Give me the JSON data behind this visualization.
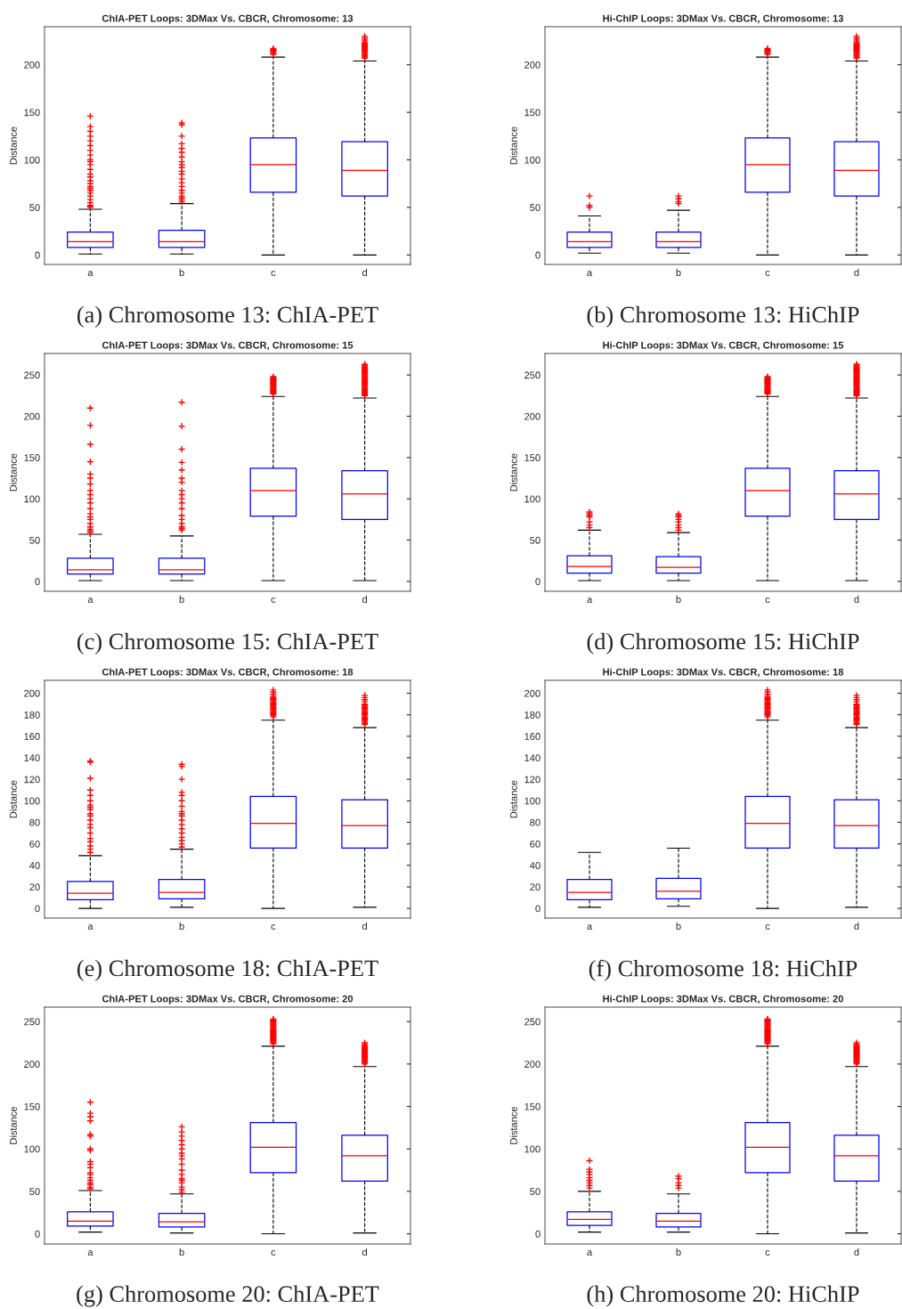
{
  "chart_data": [
    {
      "type": "box",
      "title": "ChIA-PET Loops: 3DMax Vs. CBCR, Chromosome: 13",
      "ylabel": "Distance",
      "categories": [
        "a",
        "b",
        "c",
        "d"
      ],
      "ylim": [
        -10,
        240
      ],
      "yticks": [
        0,
        50,
        100,
        150,
        200
      ],
      "marker": "cross",
      "annotations": [
        "(a) Chromosome 13: ChIA-PET"
      ],
      "series": [
        {
          "color": "#0000ff",
          "boxes": [
            {
              "low": 1,
              "q1": 8,
              "median": 14,
              "q3": 24,
              "high": 48,
              "outliers": [
                50,
                51,
                52,
                55,
                58,
                62,
                65,
                68,
                70,
                72,
                75,
                78,
                82,
                85,
                90,
                95,
                98,
                100,
                105,
                110,
                115,
                120,
                125,
                130,
                135,
                146
              ]
            },
            {
              "low": 1,
              "q1": 8,
              "median": 14,
              "q3": 26,
              "high": 54,
              "outliers": [
                56,
                58,
                60,
                62,
                65,
                68,
                72,
                76,
                80,
                85,
                88,
                92,
                95,
                98,
                103,
                108,
                112,
                117,
                125,
                137,
                139
              ]
            },
            {
              "low": 0,
              "q1": 66,
              "median": 95,
              "q3": 123,
              "high": 208,
              "outliers": [
                211,
                212,
                213,
                214,
                215,
                216,
                217
              ]
            },
            {
              "low": 0,
              "q1": 62,
              "median": 89,
              "q3": 119,
              "high": 204,
              "outliers": [
                207,
                208,
                209,
                210,
                211,
                212,
                213,
                214,
                215,
                216,
                217,
                218,
                219,
                220,
                221,
                222,
                223,
                224,
                226,
                228,
                230
              ]
            }
          ]
        }
      ]
    },
    {
      "type": "box",
      "title": "Hi-ChIP Loops: 3DMax Vs. CBCR, Chromosome: 13",
      "ylabel": "Distance",
      "categories": [
        "a",
        "b",
        "c",
        "d"
      ],
      "ylim": [
        -10,
        240
      ],
      "yticks": [
        0,
        50,
        100,
        150,
        200
      ],
      "marker": "cross",
      "annotations": [
        "(b) Chromosome 13: HiChIP"
      ],
      "series": [
        {
          "color": "#0000ff",
          "boxes": [
            {
              "low": 2,
              "q1": 8,
              "median": 14,
              "q3": 24,
              "high": 41,
              "outliers": [
                50,
                52,
                62
              ]
            },
            {
              "low": 2,
              "q1": 8,
              "median": 14,
              "q3": 24,
              "high": 47,
              "outliers": [
                54,
                56,
                59,
                62
              ]
            },
            {
              "low": 0,
              "q1": 66,
              "median": 95,
              "q3": 123,
              "high": 208,
              "outliers": [
                211,
                212,
                213,
                214,
                215,
                216,
                217
              ]
            },
            {
              "low": 0,
              "q1": 62,
              "median": 89,
              "q3": 119,
              "high": 204,
              "outliers": [
                207,
                208,
                209,
                210,
                211,
                212,
                213,
                214,
                215,
                216,
                217,
                218,
                219,
                220,
                221,
                222,
                223,
                224,
                226,
                228,
                230
              ]
            }
          ]
        }
      ]
    },
    {
      "type": "box",
      "title": "ChIA-PET Loops: 3DMax Vs. CBCR, Chromosome: 15",
      "ylabel": "Distance",
      "categories": [
        "a",
        "b",
        "c",
        "d"
      ],
      "ylim": [
        -12,
        276
      ],
      "yticks": [
        0,
        50,
        100,
        150,
        200,
        250
      ],
      "marker": "cross",
      "annotations": [
        "(c) Chromosome 15: ChIA-PET"
      ],
      "series": [
        {
          "color": "#0000ff",
          "boxes": [
            {
              "low": 1,
              "q1": 9,
              "median": 14,
              "q3": 28,
              "high": 57,
              "outliers": [
                59,
                61,
                63,
                66,
                70,
                75,
                78,
                82,
                88,
                95,
                100,
                105,
                110,
                118,
                125,
                130,
                145,
                166,
                189,
                210
              ]
            },
            {
              "low": 1,
              "q1": 9,
              "median": 14,
              "q3": 28,
              "high": 55,
              "outliers": [
                62,
                64,
                66,
                70,
                75,
                80,
                88,
                95,
                100,
                105,
                110,
                120,
                125,
                135,
                144,
                160,
                188,
                217
              ]
            },
            {
              "low": 1,
              "q1": 79,
              "median": 110,
              "q3": 137,
              "high": 224,
              "outliers": [
                227,
                228,
                229,
                230,
                231,
                232,
                233,
                234,
                235,
                236,
                237,
                238,
                239,
                240,
                241,
                242,
                243,
                244,
                245,
                246,
                247,
                248
              ]
            },
            {
              "low": 1,
              "q1": 75,
              "median": 106,
              "q3": 134,
              "high": 222,
              "outliers": [
                225,
                226,
                227,
                228,
                229,
                230,
                231,
                232,
                233,
                234,
                235,
                236,
                237,
                238,
                239,
                240,
                241,
                242,
                243,
                244,
                245,
                246,
                247,
                248,
                249,
                250,
                251,
                252,
                253,
                254,
                255,
                256,
                257,
                258,
                259,
                260,
                261,
                262,
                263
              ]
            }
          ]
        }
      ]
    },
    {
      "type": "box",
      "title": "Hi-ChIP Loops: 3DMax Vs. CBCR, Chromosome: 15",
      "ylabel": "Distance",
      "categories": [
        "a",
        "b",
        "c",
        "d"
      ],
      "ylim": [
        -12,
        276
      ],
      "yticks": [
        0,
        50,
        100,
        150,
        200,
        250
      ],
      "marker": "cross",
      "annotations": [
        "(d) Chromosome 15: HiChIP"
      ],
      "series": [
        {
          "color": "#0000ff",
          "boxes": [
            {
              "low": 1,
              "q1": 10,
              "median": 18,
              "q3": 31,
              "high": 62,
              "outliers": [
                65,
                68,
                72,
                78,
                80,
                82,
                84
              ]
            },
            {
              "low": 1,
              "q1": 10,
              "median": 17,
              "q3": 30,
              "high": 59,
              "outliers": [
                62,
                65,
                68,
                72,
                75,
                78,
                80,
                82
              ]
            },
            {
              "low": 1,
              "q1": 79,
              "median": 110,
              "q3": 137,
              "high": 224,
              "outliers": [
                227,
                228,
                229,
                230,
                231,
                232,
                233,
                234,
                235,
                236,
                237,
                238,
                239,
                240,
                241,
                242,
                243,
                244,
                245,
                246,
                247,
                248
              ]
            },
            {
              "low": 1,
              "q1": 75,
              "median": 106,
              "q3": 134,
              "high": 222,
              "outliers": [
                225,
                226,
                227,
                228,
                229,
                230,
                231,
                232,
                233,
                234,
                235,
                236,
                237,
                238,
                239,
                240,
                241,
                242,
                243,
                244,
                245,
                246,
                247,
                248,
                249,
                250,
                251,
                252,
                253,
                254,
                255,
                256,
                257,
                258,
                259,
                260,
                261,
                262,
                263
              ]
            }
          ]
        }
      ]
    },
    {
      "type": "box",
      "title": "ChIA-PET Loops: 3DMax Vs. CBCR, Chromosome: 18",
      "ylabel": "Distance",
      "categories": [
        "a",
        "b",
        "c",
        "d"
      ],
      "ylim": [
        -9,
        212
      ],
      "yticks": [
        0,
        20,
        40,
        60,
        80,
        100,
        120,
        140,
        160,
        180,
        200
      ],
      "marker": "cross",
      "annotations": [
        "(e) Chromosome 18: ChIA-PET"
      ],
      "series": [
        {
          "color": "#0000ff",
          "boxes": [
            {
              "low": 0,
              "q1": 8,
              "median": 14,
              "q3": 25,
              "high": 49,
              "outliers": [
                52,
                55,
                58,
                62,
                65,
                70,
                75,
                78,
                82,
                86,
                88,
                92,
                94,
                96,
                100,
                105,
                110,
                121,
                136,
                137
              ]
            },
            {
              "low": 1,
              "q1": 9,
              "median": 15,
              "q3": 27,
              "high": 55,
              "outliers": [
                57,
                60,
                63,
                66,
                70,
                74,
                78,
                82,
                86,
                88,
                90,
                95,
                100,
                105,
                108,
                120,
                132,
                134
              ]
            },
            {
              "low": 0,
              "q1": 56,
              "median": 79,
              "q3": 104,
              "high": 175,
              "outliers": [
                178,
                179,
                180,
                181,
                182,
                183,
                184,
                185,
                186,
                187,
                188,
                189,
                190,
                191,
                192,
                193,
                194,
                195,
                196,
                197,
                199,
                201,
                203
              ]
            },
            {
              "low": 1,
              "q1": 56,
              "median": 77,
              "q3": 101,
              "high": 168,
              "outliers": [
                171,
                172,
                173,
                174,
                175,
                176,
                177,
                178,
                179,
                180,
                181,
                182,
                183,
                184,
                185,
                186,
                187,
                188,
                189,
                190,
                192,
                194,
                196,
                198
              ]
            }
          ]
        }
      ]
    },
    {
      "type": "box",
      "title": "Hi-ChIP Loops: 3DMax Vs. CBCR, Chromosome: 18",
      "ylabel": "Distance",
      "categories": [
        "a",
        "b",
        "c",
        "d"
      ],
      "ylim": [
        -9,
        212
      ],
      "yticks": [
        0,
        20,
        40,
        60,
        80,
        100,
        120,
        140,
        160,
        180,
        200
      ],
      "marker": "cross",
      "annotations": [
        "(f) Chromosome 18: HiChIP"
      ],
      "series": [
        {
          "color": "#0000ff",
          "boxes": [
            {
              "low": 1,
              "q1": 8,
              "median": 15,
              "q3": 27,
              "high": 52
            },
            {
              "low": 2,
              "q1": 9,
              "median": 16,
              "q3": 28,
              "high": 56
            },
            {
              "low": 0,
              "q1": 56,
              "median": 79,
              "q3": 104,
              "high": 175,
              "outliers": [
                178,
                179,
                180,
                181,
                182,
                183,
                184,
                185,
                186,
                187,
                188,
                189,
                190,
                191,
                192,
                193,
                194,
                195,
                196,
                197,
                199,
                201,
                203
              ]
            },
            {
              "low": 1,
              "q1": 56,
              "median": 77,
              "q3": 101,
              "high": 168,
              "outliers": [
                171,
                172,
                173,
                174,
                175,
                176,
                177,
                178,
                179,
                180,
                181,
                182,
                183,
                184,
                185,
                186,
                187,
                188,
                189,
                190,
                192,
                194,
                196,
                198
              ]
            }
          ]
        }
      ]
    },
    {
      "type": "box",
      "title": "ChIA-PET Loops: 3DMax Vs. CBCR, Chromosome: 20",
      "ylabel": "Distance",
      "categories": [
        "a",
        "b",
        "c",
        "d"
      ],
      "ylim": [
        -12,
        267
      ],
      "yticks": [
        0,
        50,
        100,
        150,
        200,
        250
      ],
      "marker": "cross",
      "annotations": [
        "(g) Chromosome 20: ChIA-PET"
      ],
      "series": [
        {
          "color": "#0000ff",
          "boxes": [
            {
              "low": 2,
              "q1": 9,
              "median": 15,
              "q3": 26,
              "high": 51,
              "outliers": [
                53,
                55,
                58,
                60,
                63,
                66,
                70,
                72,
                78,
                82,
                85,
                98,
                100,
                115,
                117,
                133,
                138,
                142,
                155
              ]
            },
            {
              "low": 1,
              "q1": 8,
              "median": 14,
              "q3": 24,
              "high": 47,
              "outliers": [
                49,
                52,
                55,
                60,
                63,
                65,
                70,
                75,
                82,
                88,
                92,
                95,
                100,
                105,
                110,
                115,
                120,
                126
              ]
            },
            {
              "low": 0,
              "q1": 72,
              "median": 102,
              "q3": 131,
              "high": 221,
              "outliers": [
                224,
                225,
                226,
                227,
                228,
                229,
                230,
                231,
                232,
                233,
                234,
                235,
                236,
                237,
                238,
                239,
                240,
                241,
                242,
                243,
                244,
                245,
                246,
                247,
                248,
                249,
                250,
                251,
                252,
                253
              ]
            },
            {
              "low": 1,
              "q1": 62,
              "median": 92,
              "q3": 116,
              "high": 197,
              "outliers": [
                200,
                201,
                202,
                203,
                204,
                205,
                206,
                207,
                208,
                209,
                210,
                211,
                212,
                213,
                214,
                215,
                216,
                217,
                218,
                219,
                220,
                221,
                222,
                223,
                225
              ]
            }
          ]
        }
      ]
    },
    {
      "type": "box",
      "title": "Hi-ChIP Loops: 3DMax Vs. CBCR, Chromosome: 20",
      "ylabel": "Distance",
      "categories": [
        "a",
        "b",
        "c",
        "d"
      ],
      "ylim": [
        -12,
        267
      ],
      "yticks": [
        0,
        50,
        100,
        150,
        200,
        250
      ],
      "marker": "cross",
      "annotations": [
        "(h) Chromosome 20: HiChIP"
      ],
      "series": [
        {
          "color": "#0000ff",
          "boxes": [
            {
              "low": 2,
              "q1": 10,
              "median": 17,
              "q3": 26,
              "high": 50,
              "outliers": [
                54,
                57,
                60,
                63,
                66,
                70,
                73,
                76,
                86
              ]
            },
            {
              "low": 2,
              "q1": 8,
              "median": 15,
              "q3": 24,
              "high": 47,
              "outliers": [
                54,
                57,
                60,
                65,
                68
              ]
            },
            {
              "low": 0,
              "q1": 72,
              "median": 102,
              "q3": 131,
              "high": 221,
              "outliers": [
                224,
                225,
                226,
                227,
                228,
                229,
                230,
                231,
                232,
                233,
                234,
                235,
                236,
                237,
                238,
                239,
                240,
                241,
                242,
                243,
                244,
                245,
                246,
                247,
                248,
                249,
                250,
                251,
                252,
                253
              ]
            },
            {
              "low": 1,
              "q1": 62,
              "median": 92,
              "q3": 116,
              "high": 197,
              "outliers": [
                200,
                201,
                202,
                203,
                204,
                205,
                206,
                207,
                208,
                209,
                210,
                211,
                212,
                213,
                214,
                215,
                216,
                217,
                218,
                219,
                220,
                221,
                222,
                223,
                225
              ]
            }
          ]
        }
      ]
    }
  ]
}
